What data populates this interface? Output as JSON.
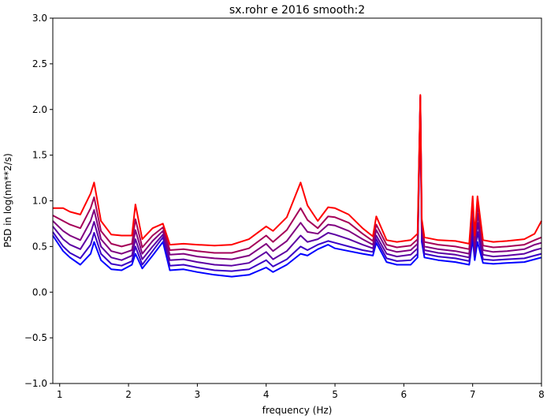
{
  "chart_data": {
    "type": "line",
    "title": "sx.rohr e 2016 smooth:2",
    "xlabel": "frequency (Hz)",
    "ylabel": "PSD in log(nm**2/s)",
    "xlim": [
      0.9,
      8.0
    ],
    "ylim": [
      -1.0,
      3.0
    ],
    "xticks": [
      1,
      2,
      3,
      4,
      5,
      6,
      7,
      8
    ],
    "xtick_labels": [
      "1",
      "2",
      "3",
      "4",
      "5",
      "6",
      "7",
      "8"
    ],
    "yticks": [
      -1.0,
      -0.5,
      0.0,
      0.5,
      1.0,
      1.5,
      2.0,
      2.5,
      3.0
    ],
    "ytick_labels": [
      "−1.0",
      "−0.5",
      "0.0",
      "0.5",
      "1.0",
      "1.5",
      "2.0",
      "2.5",
      "3.0"
    ],
    "grid": false,
    "legend": "none",
    "series": [
      {
        "color": "#0000ff",
        "x": [
          0.9,
          1.05,
          1.15,
          1.3,
          1.45,
          1.5,
          1.6,
          1.75,
          1.9,
          2.05,
          2.1,
          2.2,
          2.35,
          2.5,
          2.6,
          2.8,
          3.0,
          3.25,
          3.5,
          3.75,
          4.0,
          4.1,
          4.3,
          4.5,
          4.6,
          4.75,
          4.9,
          5.0,
          5.2,
          5.4,
          5.55,
          5.6,
          5.75,
          5.9,
          6.1,
          6.2,
          6.24,
          6.26,
          6.3,
          6.5,
          6.75,
          6.95,
          7.0,
          7.03,
          7.07,
          7.15,
          7.3,
          7.5,
          7.75,
          7.9,
          8.0
        ],
        "y": [
          0.62,
          0.45,
          0.38,
          0.3,
          0.42,
          0.55,
          0.35,
          0.25,
          0.24,
          0.3,
          0.42,
          0.26,
          0.4,
          0.55,
          0.24,
          0.25,
          0.22,
          0.19,
          0.17,
          0.19,
          0.27,
          0.22,
          0.3,
          0.42,
          0.4,
          0.47,
          0.52,
          0.48,
          0.45,
          0.42,
          0.4,
          0.54,
          0.33,
          0.3,
          0.3,
          0.38,
          2.1,
          0.55,
          0.38,
          0.35,
          0.33,
          0.3,
          0.58,
          0.35,
          0.55,
          0.32,
          0.31,
          0.32,
          0.33,
          0.36,
          0.38
        ]
      },
      {
        "color": "#3a00c5",
        "x": [
          0.9,
          1.05,
          1.15,
          1.3,
          1.45,
          1.5,
          1.6,
          1.75,
          1.9,
          2.05,
          2.1,
          2.2,
          2.35,
          2.5,
          2.6,
          2.8,
          3.0,
          3.25,
          3.5,
          3.75,
          4.0,
          4.1,
          4.3,
          4.5,
          4.6,
          4.75,
          4.9,
          5.0,
          5.2,
          5.4,
          5.55,
          5.6,
          5.75,
          5.9,
          6.1,
          6.2,
          6.24,
          6.26,
          6.3,
          6.5,
          6.75,
          6.95,
          7.0,
          7.03,
          7.07,
          7.15,
          7.3,
          7.5,
          7.75,
          7.9,
          8.0
        ],
        "y": [
          0.66,
          0.5,
          0.43,
          0.37,
          0.52,
          0.65,
          0.42,
          0.31,
          0.29,
          0.34,
          0.5,
          0.3,
          0.45,
          0.6,
          0.29,
          0.3,
          0.27,
          0.24,
          0.23,
          0.25,
          0.35,
          0.28,
          0.36,
          0.5,
          0.46,
          0.52,
          0.56,
          0.54,
          0.5,
          0.46,
          0.44,
          0.58,
          0.37,
          0.34,
          0.35,
          0.42,
          2.12,
          0.6,
          0.42,
          0.39,
          0.37,
          0.34,
          0.67,
          0.4,
          0.66,
          0.36,
          0.35,
          0.36,
          0.37,
          0.4,
          0.42
        ]
      },
      {
        "color": "#5c00a3",
        "x": [
          0.9,
          1.05,
          1.15,
          1.3,
          1.45,
          1.5,
          1.6,
          1.75,
          1.9,
          2.05,
          2.1,
          2.2,
          2.35,
          2.5,
          2.6,
          2.8,
          3.0,
          3.25,
          3.5,
          3.75,
          4.0,
          4.1,
          4.3,
          4.5,
          4.6,
          4.75,
          4.9,
          5.0,
          5.2,
          5.4,
          5.55,
          5.6,
          5.75,
          5.9,
          6.1,
          6.2,
          6.24,
          6.26,
          6.3,
          6.5,
          6.75,
          6.95,
          7.0,
          7.03,
          7.07,
          7.15,
          7.3,
          7.5,
          7.75,
          7.9,
          8.0
        ],
        "y": [
          0.72,
          0.58,
          0.52,
          0.47,
          0.65,
          0.77,
          0.5,
          0.38,
          0.35,
          0.4,
          0.58,
          0.36,
          0.5,
          0.63,
          0.35,
          0.36,
          0.33,
          0.3,
          0.29,
          0.32,
          0.44,
          0.36,
          0.45,
          0.62,
          0.55,
          0.58,
          0.65,
          0.63,
          0.58,
          0.52,
          0.48,
          0.62,
          0.42,
          0.39,
          0.41,
          0.48,
          2.13,
          0.65,
          0.46,
          0.43,
          0.41,
          0.38,
          0.76,
          0.45,
          0.76,
          0.41,
          0.39,
          0.4,
          0.42,
          0.46,
          0.48
        ]
      },
      {
        "color": "#800080",
        "x": [
          0.9,
          1.05,
          1.15,
          1.3,
          1.45,
          1.5,
          1.6,
          1.75,
          1.9,
          2.05,
          2.1,
          2.2,
          2.35,
          2.5,
          2.6,
          2.8,
          3.0,
          3.25,
          3.5,
          3.75,
          4.0,
          4.1,
          4.3,
          4.5,
          4.6,
          4.75,
          4.9,
          5.0,
          5.2,
          5.4,
          5.55,
          5.6,
          5.75,
          5.9,
          6.1,
          6.2,
          6.24,
          6.26,
          6.3,
          6.5,
          6.75,
          6.95,
          7.0,
          7.03,
          7.07,
          7.15,
          7.3,
          7.5,
          7.75,
          7.9,
          8.0
        ],
        "y": [
          0.78,
          0.67,
          0.62,
          0.57,
          0.78,
          0.9,
          0.58,
          0.45,
          0.42,
          0.46,
          0.68,
          0.42,
          0.56,
          0.67,
          0.41,
          0.42,
          0.39,
          0.37,
          0.36,
          0.4,
          0.53,
          0.45,
          0.56,
          0.76,
          0.66,
          0.64,
          0.74,
          0.73,
          0.67,
          0.58,
          0.52,
          0.68,
          0.47,
          0.44,
          0.46,
          0.53,
          2.14,
          0.7,
          0.5,
          0.47,
          0.45,
          0.42,
          0.86,
          0.5,
          0.86,
          0.46,
          0.44,
          0.45,
          0.47,
          0.52,
          0.54
        ]
      },
      {
        "color": "#a50058",
        "x": [
          0.9,
          1.05,
          1.15,
          1.3,
          1.45,
          1.5,
          1.6,
          1.75,
          1.9,
          2.05,
          2.1,
          2.2,
          2.35,
          2.5,
          2.6,
          2.8,
          3.0,
          3.25,
          3.5,
          3.75,
          4.0,
          4.1,
          4.3,
          4.5,
          4.6,
          4.75,
          4.9,
          5.0,
          5.2,
          5.4,
          5.55,
          5.6,
          5.75,
          5.9,
          6.1,
          6.2,
          6.24,
          6.26,
          6.3,
          6.5,
          6.75,
          6.95,
          7.0,
          7.03,
          7.07,
          7.15,
          7.3,
          7.5,
          7.75,
          7.9,
          8.0
        ],
        "y": [
          0.84,
          0.78,
          0.74,
          0.7,
          0.92,
          1.04,
          0.67,
          0.53,
          0.5,
          0.53,
          0.8,
          0.49,
          0.62,
          0.71,
          0.46,
          0.47,
          0.45,
          0.43,
          0.43,
          0.48,
          0.62,
          0.55,
          0.68,
          0.92,
          0.79,
          0.7,
          0.83,
          0.82,
          0.76,
          0.64,
          0.56,
          0.74,
          0.52,
          0.49,
          0.51,
          0.58,
          2.15,
          0.75,
          0.55,
          0.52,
          0.5,
          0.47,
          0.96,
          0.56,
          0.96,
          0.51,
          0.49,
          0.5,
          0.52,
          0.57,
          0.6
        ]
      },
      {
        "color": "#ff0000",
        "x": [
          0.9,
          1.05,
          1.15,
          1.3,
          1.45,
          1.5,
          1.6,
          1.75,
          1.9,
          2.05,
          2.1,
          2.2,
          2.35,
          2.5,
          2.6,
          2.8,
          3.0,
          3.25,
          3.5,
          3.75,
          4.0,
          4.1,
          4.3,
          4.5,
          4.6,
          4.75,
          4.9,
          5.0,
          5.2,
          5.4,
          5.55,
          5.6,
          5.75,
          5.9,
          6.1,
          6.2,
          6.24,
          6.26,
          6.3,
          6.5,
          6.75,
          6.95,
          7.0,
          7.03,
          7.07,
          7.15,
          7.3,
          7.5,
          7.75,
          7.9,
          8.0
        ],
        "y": [
          0.92,
          0.92,
          0.88,
          0.85,
          1.08,
          1.2,
          0.78,
          0.63,
          0.62,
          0.62,
          0.96,
          0.58,
          0.7,
          0.75,
          0.52,
          0.53,
          0.52,
          0.51,
          0.52,
          0.58,
          0.72,
          0.67,
          0.82,
          1.2,
          0.95,
          0.78,
          0.93,
          0.92,
          0.85,
          0.7,
          0.61,
          0.83,
          0.57,
          0.55,
          0.57,
          0.64,
          2.16,
          0.8,
          0.6,
          0.57,
          0.56,
          0.53,
          1.05,
          0.62,
          1.05,
          0.57,
          0.55,
          0.56,
          0.58,
          0.64,
          0.78
        ]
      }
    ]
  }
}
